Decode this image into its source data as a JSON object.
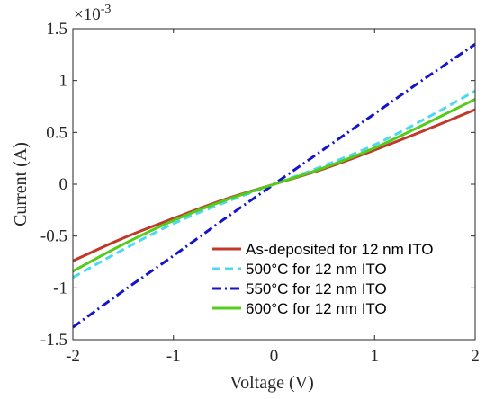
{
  "chart_data": {
    "type": "line",
    "xlabel": "Voltage (V)",
    "ylabel": "Current (A)",
    "y_exponent_label": "×10",
    "y_exponent_power": "-3",
    "xlim": [
      -2,
      2
    ],
    "ylim": [
      -1.5,
      1.5
    ],
    "x_ticks": [
      -2,
      -1,
      0,
      1,
      2
    ],
    "x_tick_labels": [
      "-2",
      "-1",
      "0",
      "1",
      "2"
    ],
    "y_ticks": [
      -1.5,
      -1,
      -0.5,
      0,
      0.5,
      1,
      1.5
    ],
    "y_tick_labels": [
      "-1.5",
      "-1",
      "-0.5",
      "0",
      "0.5",
      "1",
      "1.5"
    ],
    "grid": false,
    "legend_position": "bottom-right",
    "series": [
      {
        "name": "As-deposited for 12 nm ITO",
        "color": "#c0392b",
        "dash": "solid",
        "x": [
          -2,
          -1.5,
          -1,
          -0.5,
          0,
          0.5,
          1,
          1.5,
          2
        ],
        "y": [
          -0.74,
          -0.52,
          -0.33,
          -0.15,
          0,
          0.15,
          0.33,
          0.52,
          0.72
        ]
      },
      {
        "name": "500°C for 12 nm ITO",
        "color": "#4dd8f0",
        "dash": "dashed",
        "x": [
          -2,
          -1.5,
          -1,
          -0.5,
          0,
          0.5,
          1,
          1.5,
          2
        ],
        "y": [
          -0.9,
          -0.63,
          -0.38,
          -0.18,
          0,
          0.18,
          0.38,
          0.63,
          0.9
        ]
      },
      {
        "name": "550°C for 12 nm ITO",
        "color": "#1515c8",
        "dash": "dashdot",
        "x": [
          -2,
          -1.5,
          -1,
          -0.5,
          0,
          0.5,
          1,
          1.5,
          2
        ],
        "y": [
          -1.38,
          -1.03,
          -0.69,
          -0.34,
          0,
          0.34,
          0.68,
          1.02,
          1.35
        ]
      },
      {
        "name": "600°C for 12 nm ITO",
        "color": "#55cc1a",
        "dash": "solid",
        "x": [
          -2,
          -1.5,
          -1,
          -0.5,
          0,
          0.5,
          1,
          1.5,
          2
        ],
        "y": [
          -0.84,
          -0.58,
          -0.35,
          -0.16,
          0,
          0.16,
          0.35,
          0.58,
          0.82
        ]
      }
    ]
  }
}
